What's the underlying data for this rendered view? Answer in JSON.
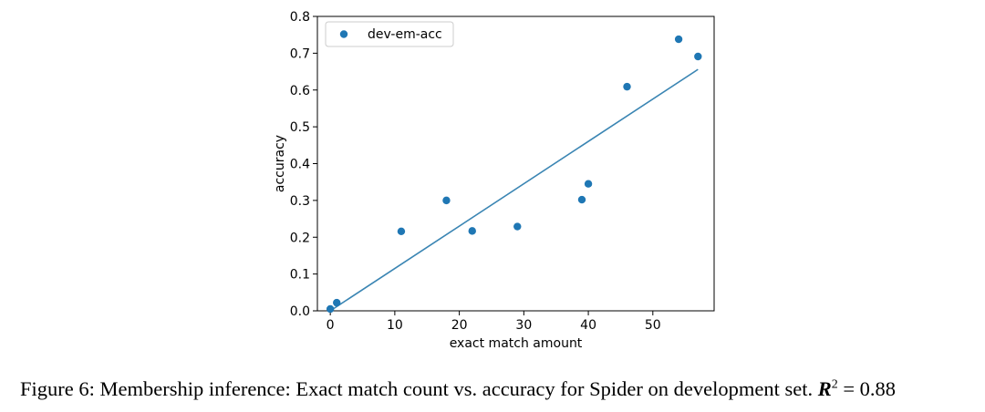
{
  "chart_data": {
    "type": "scatter",
    "title": "",
    "xlabel": "exact match amount",
    "ylabel": "accuracy",
    "xlim": [
      -2,
      59.5
    ],
    "ylim": [
      0.0,
      0.8
    ],
    "xticks": [
      0,
      10,
      20,
      30,
      40,
      50
    ],
    "yticks": [
      0.0,
      0.1,
      0.2,
      0.3,
      0.4,
      0.5,
      0.6,
      0.7,
      0.8
    ],
    "grid": false,
    "legend": {
      "entries": [
        "dev-em-acc"
      ],
      "placement": "top-left"
    },
    "series": [
      {
        "name": "dev-em-acc",
        "color": "#1f77b4",
        "x": [
          0,
          1,
          11,
          18,
          22,
          29,
          39,
          40,
          46,
          54,
          57
        ],
        "y": [
          0.005,
          0.022,
          0.216,
          0.3,
          0.217,
          0.229,
          0.302,
          0.345,
          0.609,
          0.738,
          0.691
        ]
      }
    ],
    "fit_line": {
      "color": "#3a85b3",
      "x": [
        0,
        57
      ],
      "y": [
        0.0,
        0.656
      ]
    }
  },
  "caption": {
    "text": "Figure 6: Membership inference: Exact match count vs. accuracy for Spider on development set.",
    "r2_symbol": "R",
    "r2_exponent": "2",
    "r2_value": "= 0.88"
  }
}
